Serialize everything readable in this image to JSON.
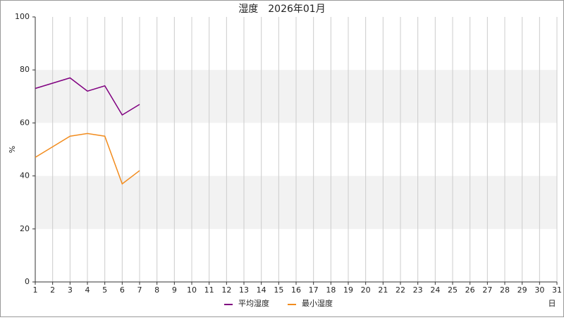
{
  "chart_data": {
    "type": "line",
    "title": "湿度　2026年01月",
    "y_label": "%",
    "x_label": "日",
    "x": [
      1,
      2,
      3,
      4,
      5,
      6,
      7,
      8,
      9,
      10,
      11,
      12,
      13,
      14,
      15,
      16,
      17,
      18,
      19,
      20,
      21,
      22,
      23,
      24,
      25,
      26,
      27,
      28,
      29,
      30,
      31
    ],
    "series": [
      {
        "name": "平均湿度",
        "color": "#800080",
        "values": [
          73,
          75,
          77,
          72,
          74,
          63,
          67,
          null,
          null,
          null,
          null,
          null,
          null,
          null,
          null,
          null,
          null,
          null,
          null,
          null,
          null,
          null,
          null,
          null,
          null,
          null,
          null,
          null,
          null,
          null,
          null
        ]
      },
      {
        "name": "最小湿度",
        "color": "#f28c1e",
        "values": [
          47,
          51,
          55,
          56,
          55,
          37,
          42,
          null,
          null,
          null,
          null,
          null,
          null,
          null,
          null,
          null,
          null,
          null,
          null,
          null,
          null,
          null,
          null,
          null,
          null,
          null,
          null,
          null,
          null,
          null,
          null
        ]
      }
    ],
    "xlim": [
      1,
      31
    ],
    "xticks": [
      1,
      2,
      3,
      4,
      5,
      6,
      7,
      8,
      9,
      10,
      11,
      12,
      13,
      14,
      15,
      16,
      17,
      18,
      19,
      20,
      21,
      22,
      23,
      24,
      25,
      26,
      27,
      28,
      29,
      30,
      31
    ],
    "ylim": [
      0,
      100
    ],
    "yticks": [
      0,
      20,
      40,
      60,
      80,
      100
    ],
    "grid": true,
    "legend": "bottom"
  }
}
